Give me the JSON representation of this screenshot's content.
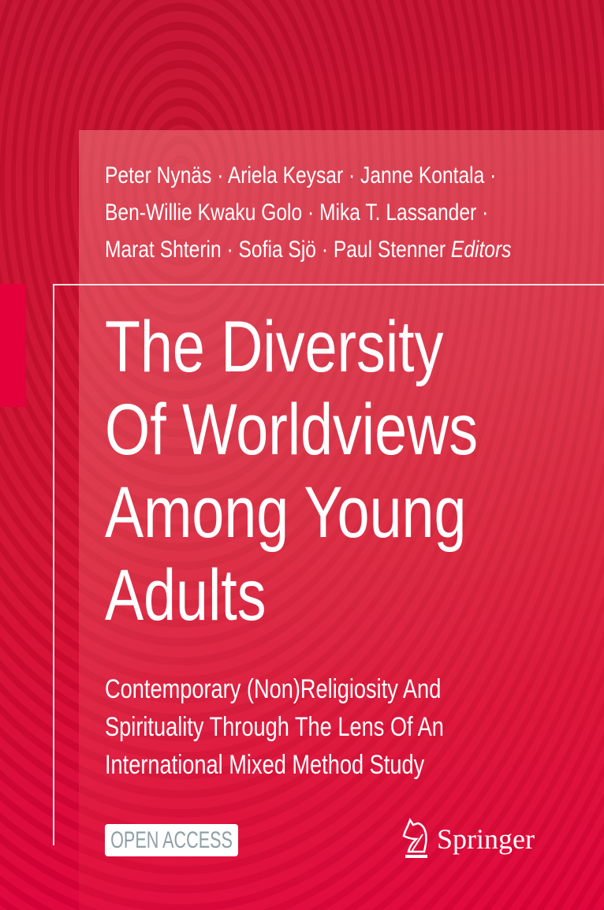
{
  "cover": {
    "authors": [
      "Peter Nynäs · Ariela Keysar · Janne Kontala ·",
      "Ben-Willie Kwaku Golo · Mika T. Lassander ·",
      "Marat Shterin · Sofia Sjö · Paul Stenner"
    ],
    "editors_label": "Editors",
    "title": [
      "The Diversity",
      "Of Worldviews",
      "Among Young",
      "Adults"
    ],
    "subtitle": [
      "Contemporary (Non)Religiosity And",
      "Spirituality Through The Lens Of An",
      "International Mixed Method Study"
    ],
    "badge": "OPEN ACCESS",
    "publisher": "Springer",
    "publisher_icon": "knight-horse-icon",
    "colors": {
      "background": "#c8102e",
      "accent": "#e4003a",
      "badge_text": "#8fa0a6"
    }
  }
}
